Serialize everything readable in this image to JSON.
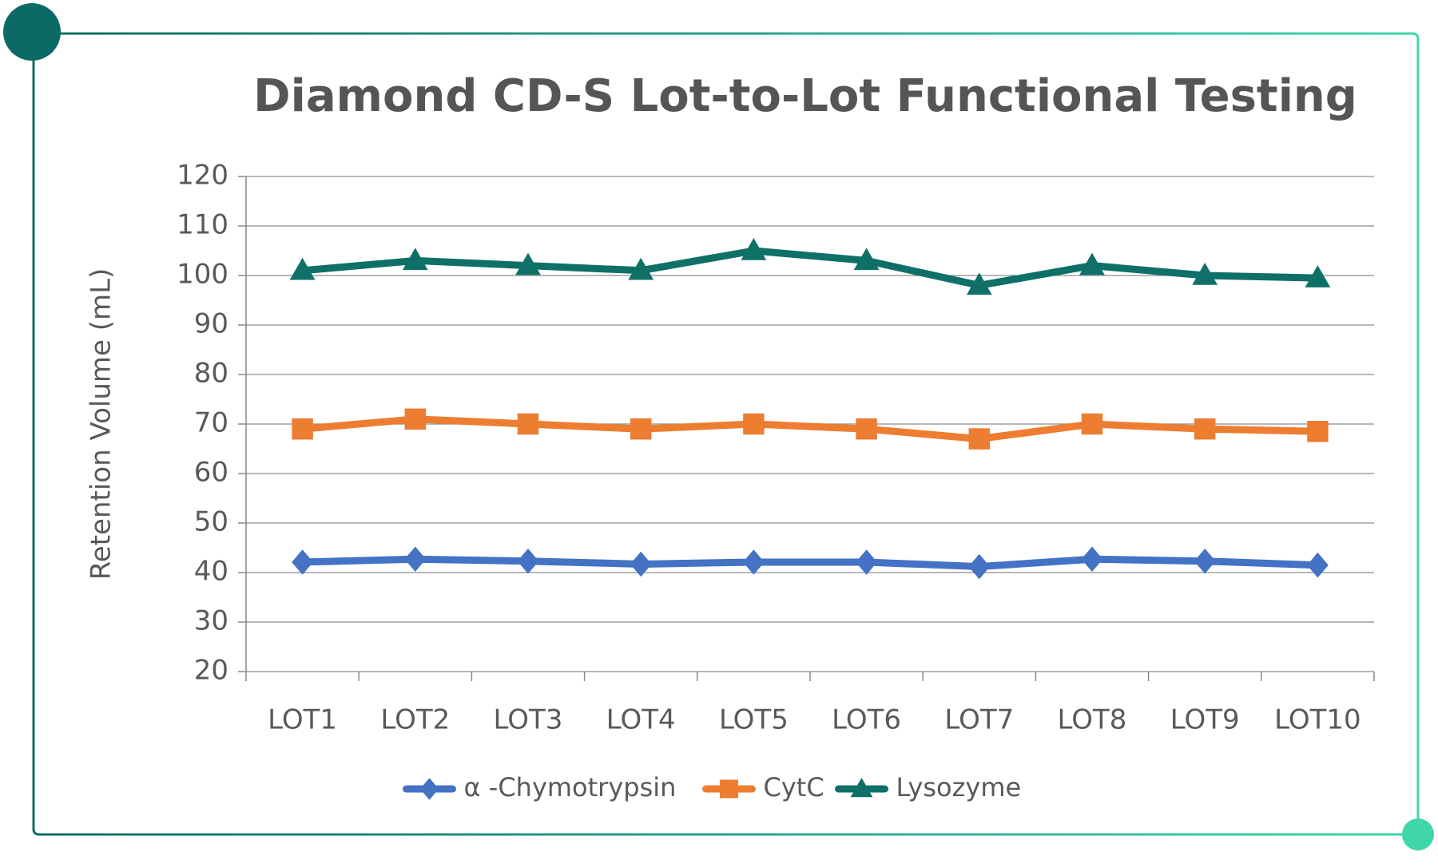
{
  "chart_data": {
    "type": "line",
    "title": "Diamond CD-S Lot-to-Lot Functional Testing",
    "y_label": "Retention Volume (mL)",
    "categories": [
      "LOT1",
      "LOT2",
      "LOT3",
      "LOT4",
      "LOT5",
      "LOT6",
      "LOT7",
      "LOT8",
      "LOT9",
      "LOT10"
    ],
    "series": [
      {
        "name": "α -Chymotrypsin",
        "color": "#4472c4",
        "values": [
          42.1,
          42.7,
          42.3,
          41.7,
          42.1,
          42.1,
          41.2,
          42.7,
          42.3,
          41.5
        ]
      },
      {
        "name": "CytC",
        "color": "#ed7d31",
        "values": [
          69,
          71,
          70,
          69,
          70,
          69,
          67,
          70,
          69,
          68.5
        ]
      },
      {
        "name": "Lysozyme",
        "color": "#0f7068",
        "values": [
          101,
          103,
          102,
          101,
          105,
          103,
          98,
          102,
          100,
          99.5
        ]
      }
    ],
    "ylim": [
      20,
      120
    ],
    "yticks": [
      20,
      30,
      40,
      50,
      60,
      70,
      80,
      90,
      100,
      110,
      120
    ],
    "grid": true
  }
}
